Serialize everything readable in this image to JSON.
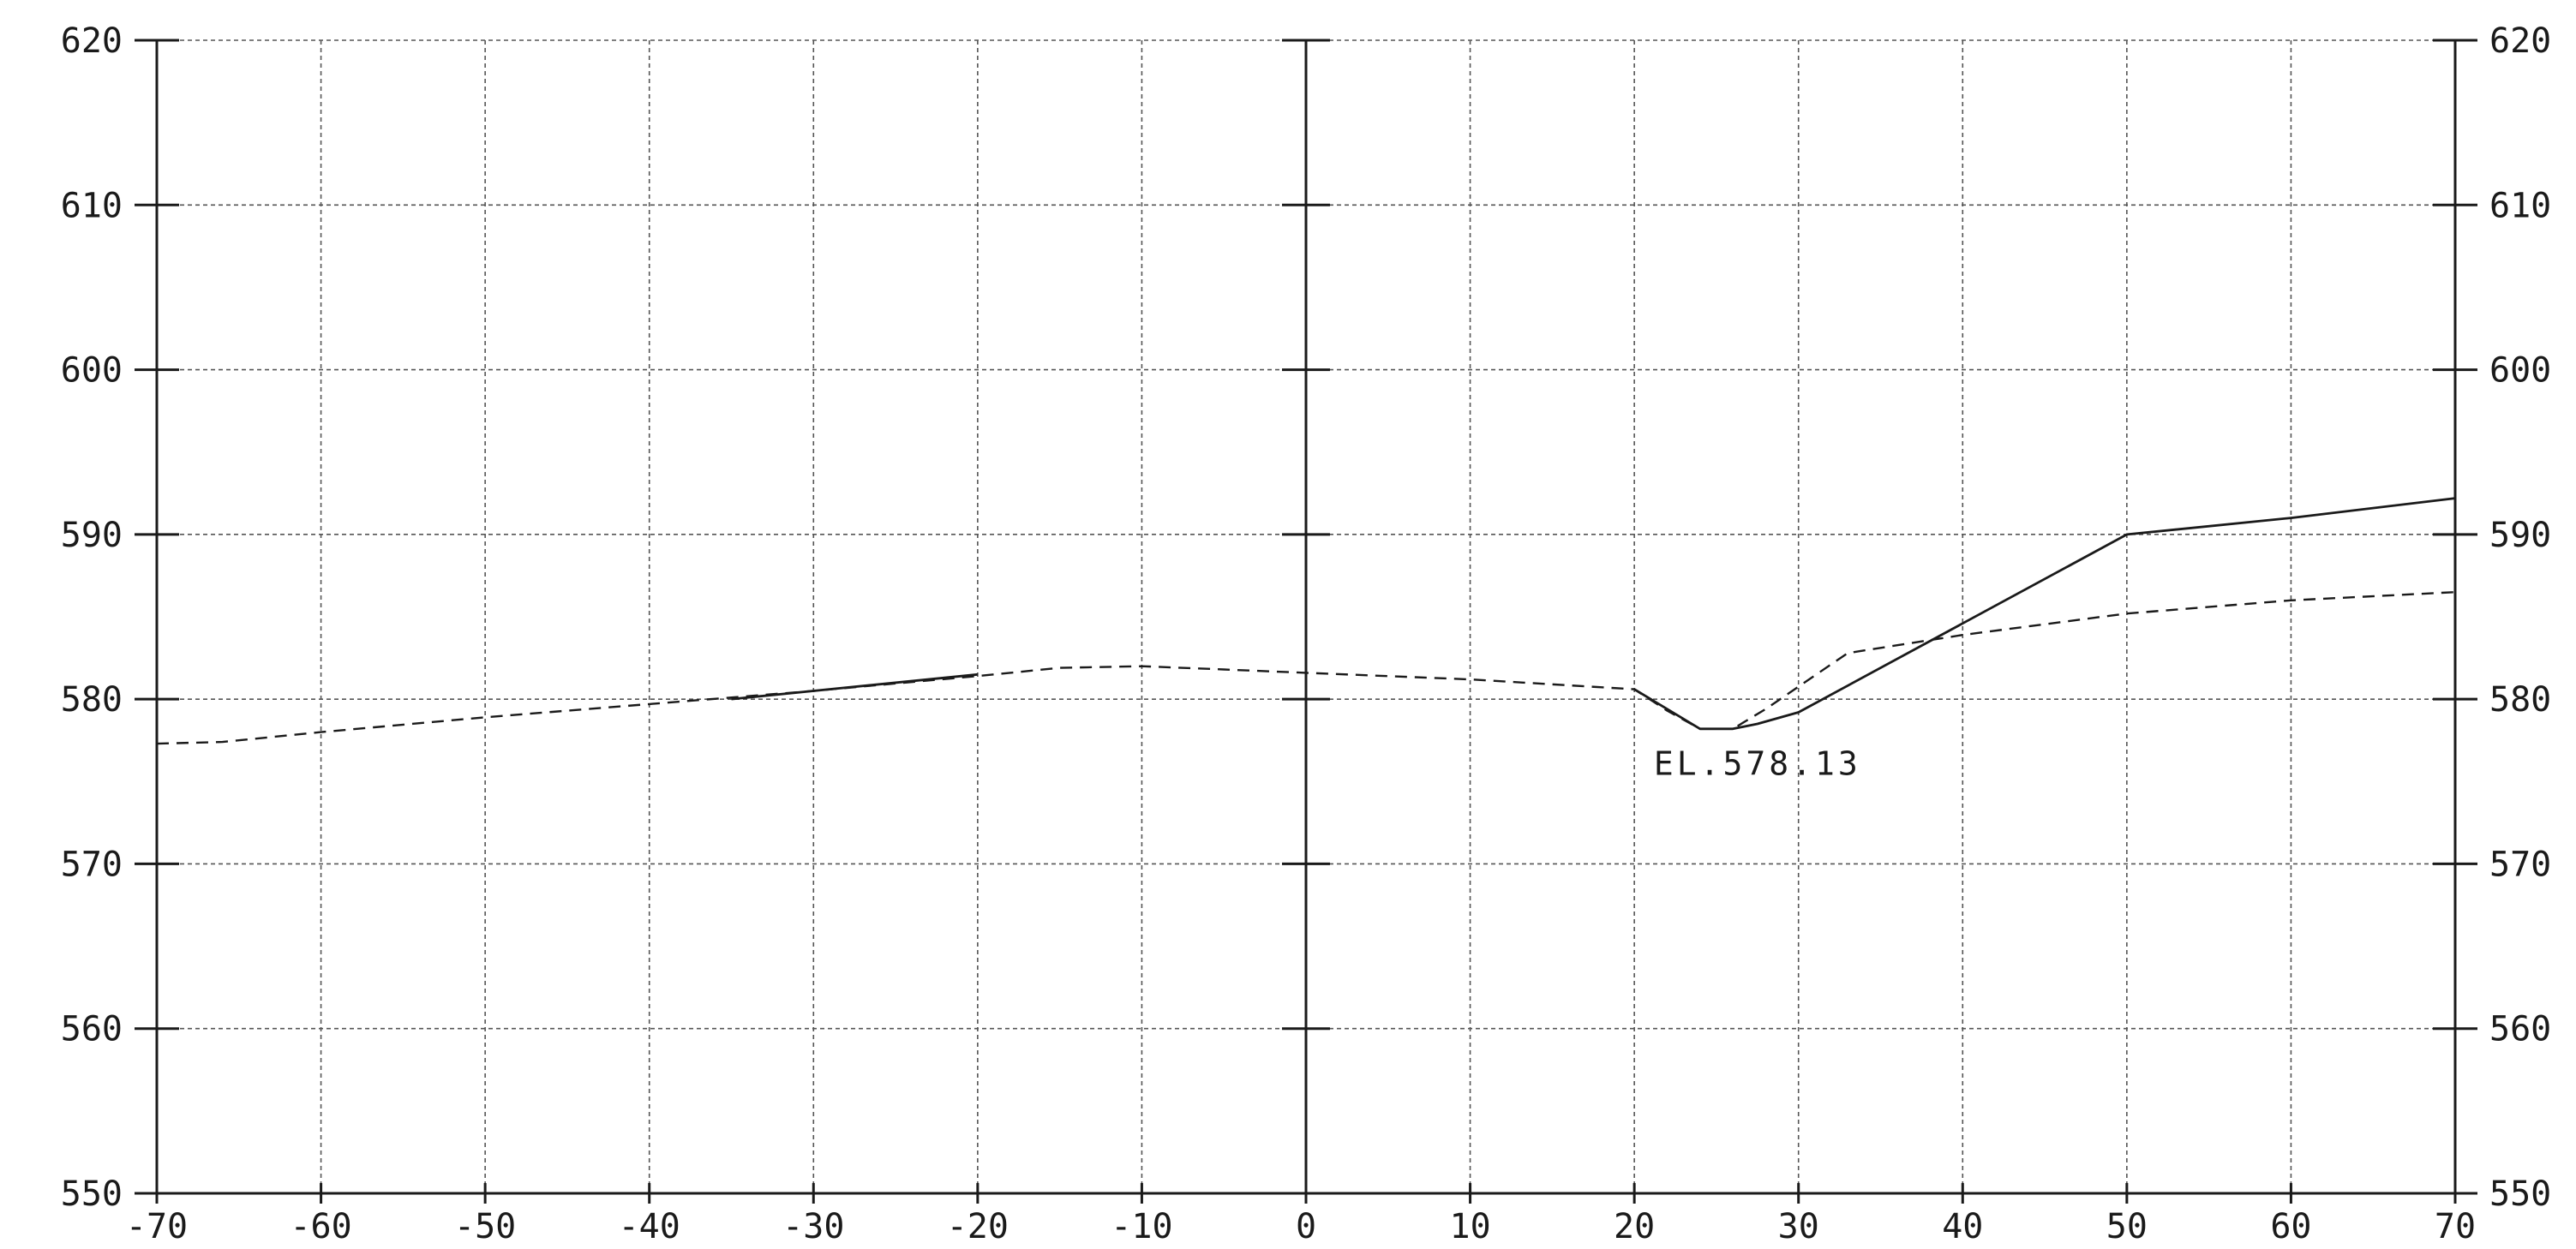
{
  "chart_data": {
    "type": "line",
    "title": "",
    "xlabel": "",
    "ylabel": "",
    "xlim": [
      -70,
      70
    ],
    "ylim": [
      550,
      620
    ],
    "x_ticks": [
      -70,
      -60,
      -50,
      -40,
      -30,
      -20,
      -10,
      0,
      10,
      20,
      30,
      40,
      50,
      60,
      70
    ],
    "x_tick_labels": [
      "-70",
      "-60",
      "-50",
      "-40",
      "-30",
      "-20",
      "-10",
      "0",
      "10",
      "20",
      "30",
      "40",
      "50",
      "60",
      "70"
    ],
    "y_ticks": [
      550,
      560,
      570,
      580,
      590,
      600,
      610,
      620
    ],
    "y_tick_labels": [
      "550",
      "560",
      "570",
      "580",
      "590",
      "600",
      "610",
      "620"
    ],
    "grid": true,
    "series": [
      {
        "style": "dashed",
        "color": "#1a1a1a",
        "points": [
          [
            -70,
            577.3
          ],
          [
            -66,
            577.4
          ],
          [
            -60,
            578.0
          ],
          [
            -50,
            578.9
          ],
          [
            -40,
            579.7
          ],
          [
            -30,
            580.5
          ],
          [
            -20,
            581.4
          ],
          [
            -15,
            581.9
          ],
          [
            -10,
            582.0
          ],
          [
            -5,
            581.8
          ],
          [
            0,
            581.6
          ],
          [
            10,
            581.2
          ],
          [
            20,
            580.6
          ],
          [
            22,
            579.3
          ],
          [
            24,
            578.2
          ],
          [
            26,
            578.2
          ],
          [
            28,
            579.4
          ],
          [
            33,
            582.8
          ],
          [
            40,
            583.9
          ],
          [
            50,
            585.2
          ],
          [
            60,
            586.0
          ],
          [
            70,
            586.5
          ]
        ]
      },
      {
        "style": "solid",
        "color": "#1a1a1a",
        "points": [
          [
            -35,
            580.0
          ],
          [
            -30,
            580.5
          ],
          [
            -20,
            581.5
          ]
        ]
      },
      {
        "style": "solid",
        "color": "#1a1a1a",
        "points": [
          [
            20,
            580.6
          ],
          [
            24,
            578.2
          ],
          [
            26,
            578.2
          ],
          [
            27.5,
            578.5
          ],
          [
            30,
            579.2
          ],
          [
            40,
            584.6
          ],
          [
            50,
            590.0
          ],
          [
            60,
            591.0
          ],
          [
            70,
            592.2
          ]
        ]
      }
    ],
    "annotations": [
      {
        "text": "EL.578.13",
        "x": 27.5,
        "y": 575.4
      }
    ]
  }
}
